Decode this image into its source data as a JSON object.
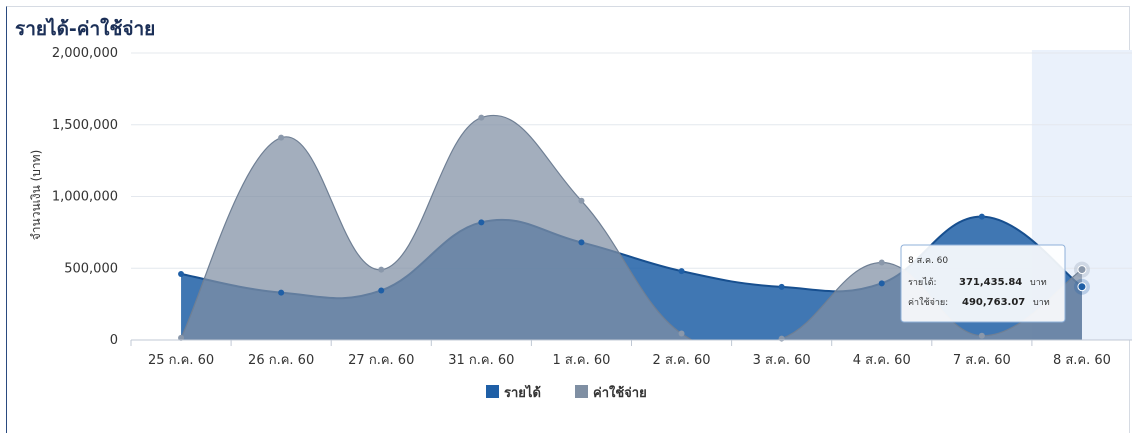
{
  "chart_data": {
    "type": "area",
    "title": "รายได้-ค่าใช้จ่าย",
    "ylabel": "จำนวนเงิน (บาท)",
    "xlabel": "",
    "categories": [
      "25 ก.ค. 60",
      "26 ก.ค. 60",
      "27 ก.ค. 60",
      "31 ก.ค. 60",
      "1 ส.ค. 60",
      "2 ส.ค. 60",
      "3 ส.ค. 60",
      "4 ส.ค. 60",
      "7 ส.ค. 60",
      "8 ส.ค. 60"
    ],
    "ylim": [
      0,
      2000000
    ],
    "yticks": [
      0,
      500000,
      1000000,
      1500000,
      2000000
    ],
    "ytick_labels": [
      "0",
      "500,000",
      "1,000,000",
      "1,500,000",
      "2,000,000"
    ],
    "grid": true,
    "legend_position": "bottom-center",
    "highlighted_category_index": 9,
    "series": [
      {
        "name": "รายได้",
        "color": "#1f5fa6",
        "values": [
          460000,
          330000,
          345000,
          820000,
          680000,
          480000,
          370000,
          395000,
          860000,
          371435.84
        ]
      },
      {
        "name": "ค่าใช้จ่าย",
        "color": "#7f8fa3",
        "values": [
          15000,
          1410000,
          490000,
          1550000,
          970000,
          45000,
          10000,
          540000,
          30000,
          490763.07
        ]
      }
    ]
  },
  "tooltip": {
    "date": "8 ส.ค. 60",
    "income_label": "รายได้:",
    "income_value": "371,435.84",
    "expense_label": "ค่าใช้จ่าย:",
    "expense_value": "490,763.07",
    "unit": "บาท"
  }
}
